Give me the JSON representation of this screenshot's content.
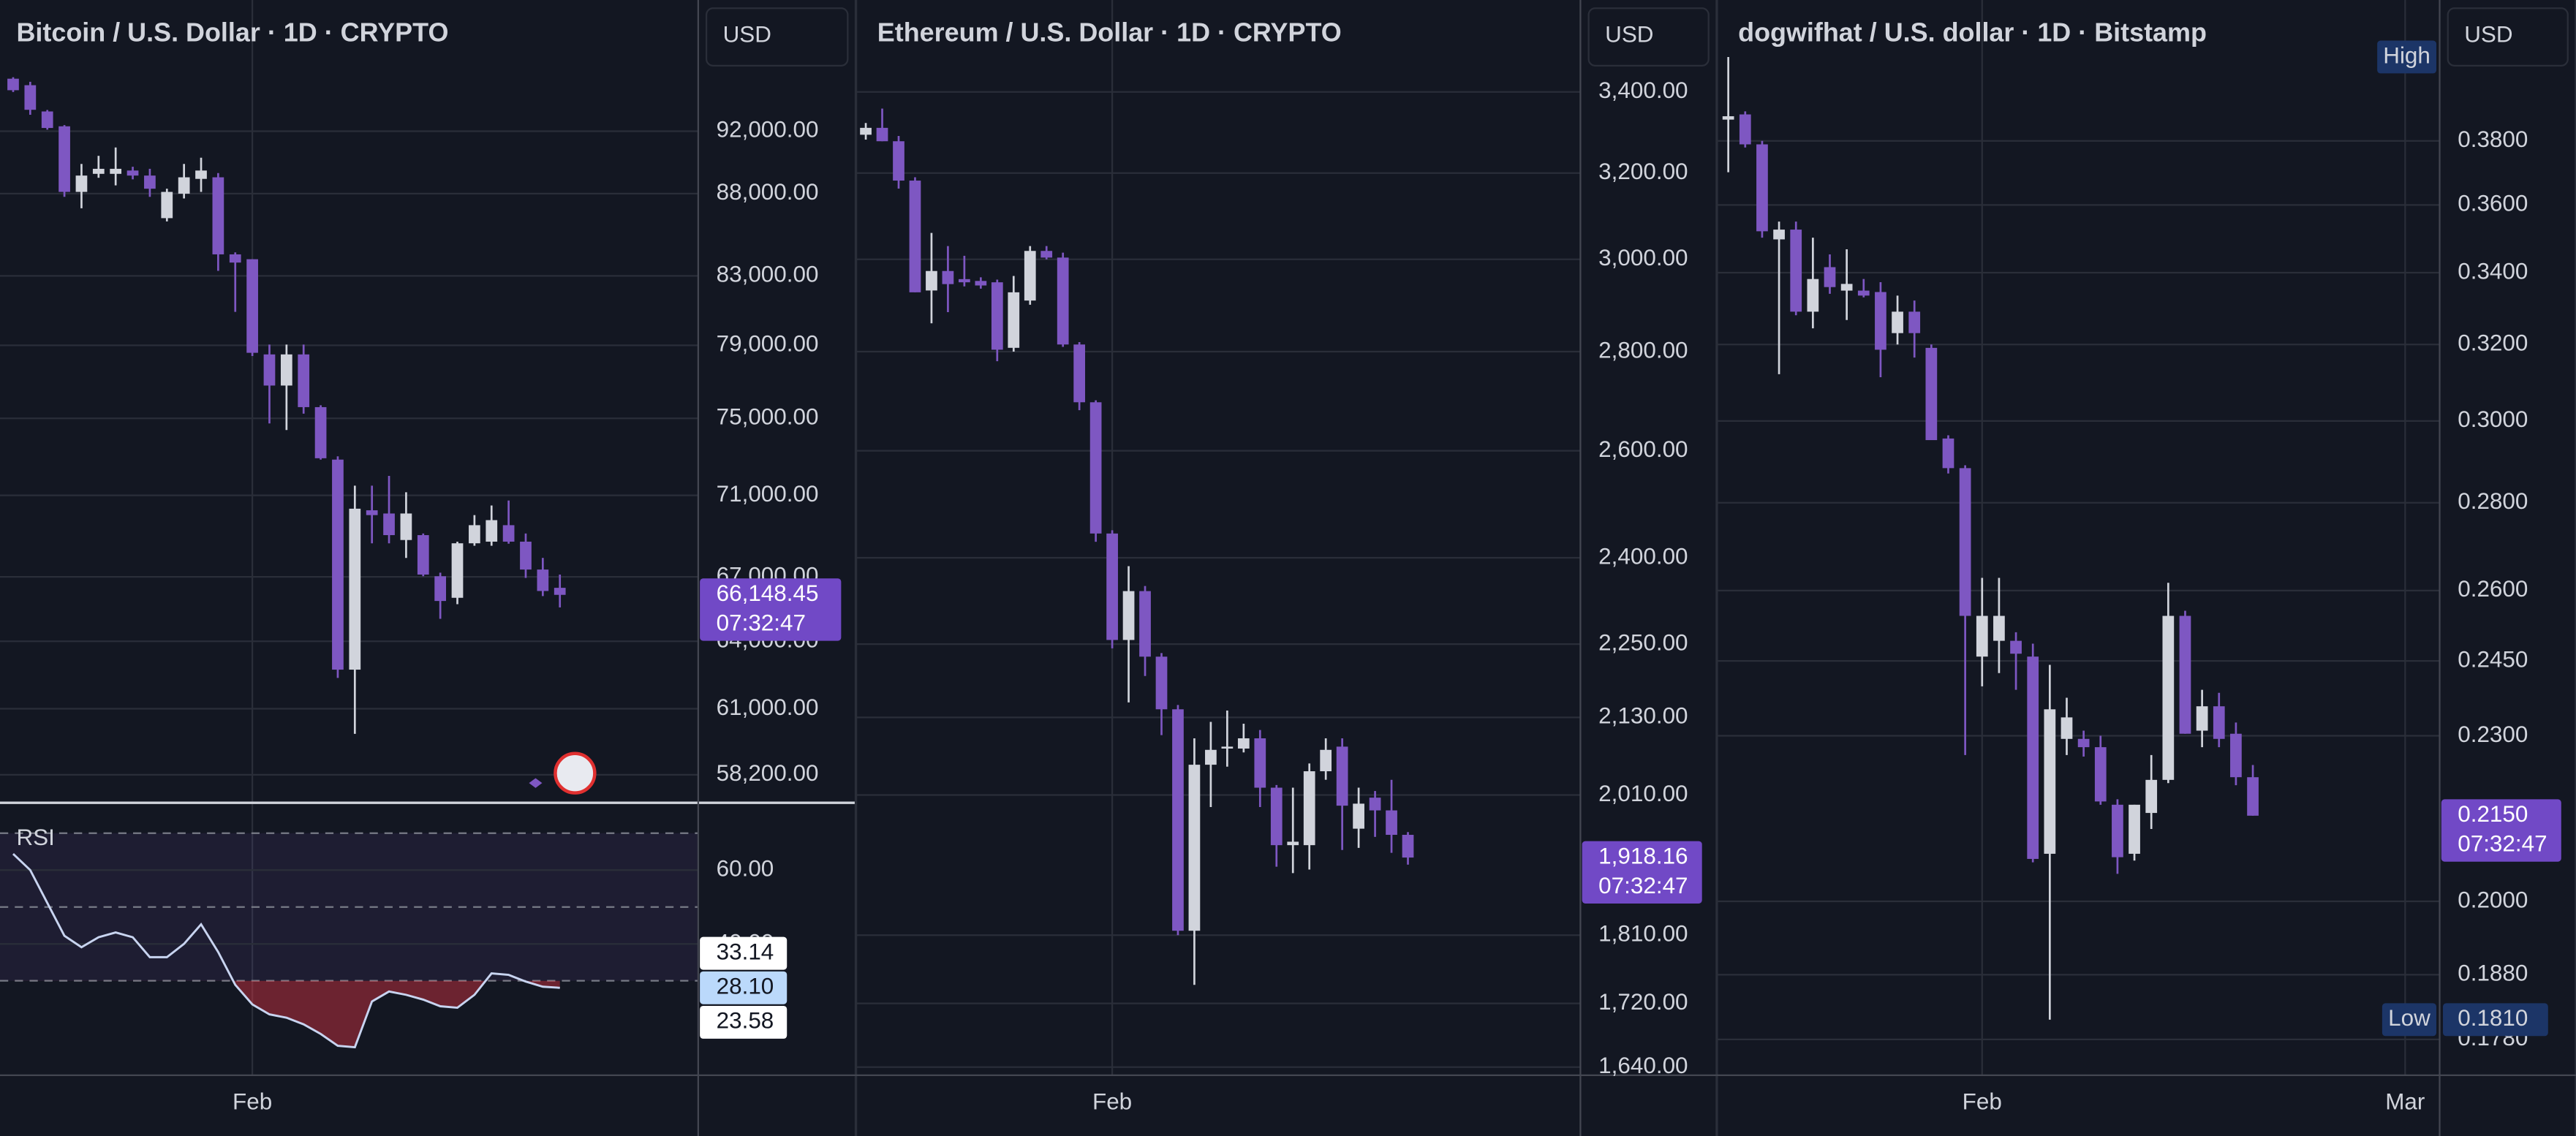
{
  "chart_data": [
    {
      "type": "candlestick",
      "title": "Bitcoin / U.S. Dollar · 1D · CRYPTO",
      "currency": "USD",
      "log_scale": true,
      "grid": true,
      "up_color": "#d1d4dc",
      "down_color": "#7e57c2",
      "ylim": [
        57120,
        101000
      ],
      "yticks": [
        {
          "value": 92000,
          "label": "92,000.00"
        },
        {
          "value": 88000,
          "label": "88,000.00"
        },
        {
          "value": 83000,
          "label": "83,000.00"
        },
        {
          "value": 79000,
          "label": "79,000.00"
        },
        {
          "value": 75000,
          "label": "75,000.00"
        },
        {
          "value": 71000,
          "label": "71,000.00"
        },
        {
          "value": 67000,
          "label": "67,000.00"
        },
        {
          "value": 64000,
          "label": "64,000.00"
        },
        {
          "value": 61000,
          "label": "61,000.00"
        },
        {
          "value": 58200,
          "label": "58,200.00"
        }
      ],
      "categories": [
        null,
        null,
        null,
        null,
        null,
        null,
        null,
        null,
        null,
        null,
        null,
        null,
        null,
        null,
        "Feb",
        null,
        null,
        null,
        null,
        null,
        null,
        null,
        null,
        null,
        null,
        null,
        null,
        null,
        null,
        null,
        null,
        null,
        null
      ],
      "open": [
        95500,
        95060,
        93300,
        92320,
        88110,
        89250,
        89250,
        89460,
        89140,
        86480,
        88000,
        88930,
        89030,
        84280,
        83990,
        78490,
        76770,
        78490,
        75600,
        72830,
        62720,
        70250,
        70090,
        68780,
        69020,
        67030,
        66010,
        68620,
        68700,
        69510,
        68700,
        67350,
        66480
      ],
      "high": [
        95600,
        95290,
        93400,
        92400,
        89880,
        90400,
        90940,
        89700,
        89570,
        88310,
        89880,
        90280,
        89300,
        84400,
        83990,
        79040,
        79040,
        79040,
        75700,
        73000,
        71490,
        71490,
        71990,
        71160,
        69100,
        67200,
        68700,
        70010,
        70490,
        70740,
        69100,
        67910,
        67110
      ],
      "low": [
        94600,
        93080,
        92100,
        87800,
        87090,
        89000,
        88520,
        88900,
        87800,
        86280,
        87700,
        88110,
        83300,
        80900,
        78400,
        74730,
        74380,
        75250,
        72830,
        62350,
        59920,
        68620,
        68620,
        67910,
        67030,
        65030,
        65710,
        68500,
        68500,
        68600,
        66950,
        66090,
        65560
      ],
      "close": [
        94720,
        93410,
        92210,
        88110,
        89140,
        89570,
        89570,
        89140,
        88310,
        88110,
        89030,
        89460,
        84280,
        83790,
        78580,
        76770,
        78490,
        75600,
        72900,
        62720,
        70330,
        70010,
        69020,
        70090,
        67110,
        65860,
        68620,
        69510,
        69760,
        68700,
        67350,
        66330,
        66148.45
      ],
      "last_price": {
        "value": 66148.45,
        "label": "66,148.45"
      },
      "countdown": "07:32:47",
      "rsi": {
        "title": "RSI",
        "color": "#c8d4f0",
        "ylim": [
          4.4,
          77.8
        ],
        "yticks": [
          {
            "value": 60,
            "label": "60.00"
          },
          {
            "value": 40,
            "label": "40.00"
          }
        ],
        "levels": [
          70,
          50,
          30
        ],
        "values": [
          64.4,
          60,
          51.1,
          42.2,
          39.1,
          41.8,
          43.1,
          41.8,
          36.4,
          36.4,
          40,
          45.3,
          37.8,
          28.9,
          23.6,
          20.9,
          20,
          18.2,
          15.6,
          12.4,
          12,
          24.4,
          27.1,
          26.2,
          24.9,
          23.1,
          22.7,
          26.2,
          32,
          31.6,
          29.8,
          28.4,
          28.1
        ],
        "labels": [
          {
            "value": 33.14,
            "label": "33.14"
          },
          {
            "value": 28.1,
            "label": "28.10"
          },
          {
            "value": 23.58,
            "label": "23.58"
          }
        ],
        "label_colors": [
          "#ffffff",
          "#bbd9fb",
          "#ffffff"
        ]
      }
    },
    {
      "type": "candlestick",
      "title": "Ethereum / U.S. Dollar · 1D · CRYPTO",
      "currency": "USD",
      "log_scale": true,
      "grid": true,
      "up_color": "#d1d4dc",
      "down_color": "#7e57c2",
      "ylim": [
        1630,
        3642
      ],
      "yticks": [
        {
          "value": 3400,
          "label": "3,400.00"
        },
        {
          "value": 3200,
          "label": "3,200.00"
        },
        {
          "value": 3000,
          "label": "3,000.00"
        },
        {
          "value": 2800,
          "label": "2,800.00"
        },
        {
          "value": 2600,
          "label": "2,600.00"
        },
        {
          "value": 2400,
          "label": "2,400.00"
        },
        {
          "value": 2250,
          "label": "2,250.00"
        },
        {
          "value": 2130,
          "label": "2,130.00"
        },
        {
          "value": 2010,
          "label": "2,010.00"
        },
        {
          "value": 1810,
          "label": "1,810.00"
        },
        {
          "value": 1720,
          "label": "1,720.00"
        },
        {
          "value": 1640,
          "label": "1,640.00"
        }
      ],
      "categories": [
        null,
        null,
        null,
        null,
        null,
        null,
        null,
        null,
        null,
        null,
        null,
        null,
        null,
        null,
        null,
        "Feb",
        null,
        null,
        null,
        null,
        null,
        null,
        null,
        null,
        null,
        null,
        null,
        null,
        null,
        null,
        null,
        null,
        null,
        null
      ],
      "open": [
        3293,
        3310,
        3277,
        3182,
        2931,
        2974,
        2956,
        2952,
        2949,
        2808,
        2909,
        3019,
        3004,
        2815,
        2696,
        2444,
        2257,
        2341,
        2229,
        2143,
        1816,
        2056,
        2081,
        2081,
        2097,
        2021,
        1936,
        1936,
        2046,
        2084,
        1960,
        2006,
        1987,
        1951
      ],
      "high": [
        3322,
        3358,
        3290,
        3190,
        3060,
        3030,
        3008,
        2960,
        2955,
        2963,
        3030,
        3030,
        3015,
        2820,
        2700,
        2450,
        2385,
        2350,
        2235,
        2150,
        2097,
        2123,
        2141,
        2120,
        2110,
        2025,
        2021,
        2058,
        2097,
        2097,
        2021,
        2016,
        2033,
        1955
      ],
      "low": [
        3281,
        3277,
        3163,
        2927,
        2860,
        2884,
        2940,
        2935,
        2780,
        2800,
        2900,
        3000,
        2810,
        2680,
        2429,
        2243,
        2154,
        2197,
        2102,
        1810,
        1744,
        1992,
        2053,
        2075,
        1992,
        1905,
        1896,
        1901,
        2033,
        1929,
        1932,
        1948,
        1925,
        1908
      ],
      "close": [
        3310,
        3277,
        3182,
        2927,
        2974,
        2945,
        2949,
        2942,
        2804,
        2927,
        3019,
        3004,
        2815,
        2696,
        2444,
        2257,
        2341,
        2229,
        2143,
        1816,
        2056,
        2079,
        2084,
        2097,
        2021,
        1936,
        1941,
        2046,
        2079,
        1994,
        1997,
        1987,
        1951,
        1918.16
      ],
      "last_price": {
        "value": 1918.16,
        "label": "1,918.16"
      },
      "countdown": "07:32:47"
    },
    {
      "type": "candlestick",
      "title": "dogwifhat / U.S. dollar · 1D · Bitstamp",
      "currency": "USD",
      "log_scale": true,
      "grid": true,
      "up_color": "#d1d4dc",
      "down_color": "#7e57c2",
      "ylim": [
        0.1727,
        0.428
      ],
      "yticks": [
        {
          "value": 0.38,
          "label": "0.3800"
        },
        {
          "value": 0.36,
          "label": "0.3600"
        },
        {
          "value": 0.34,
          "label": "0.3400"
        },
        {
          "value": 0.32,
          "label": "0.3200"
        },
        {
          "value": 0.3,
          "label": "0.3000"
        },
        {
          "value": 0.28,
          "label": "0.2800"
        },
        {
          "value": 0.26,
          "label": "0.2600"
        },
        {
          "value": 0.245,
          "label": "0.2450"
        },
        {
          "value": 0.23,
          "label": "0.2300"
        },
        {
          "value": 0.2,
          "label": "0.2000"
        },
        {
          "value": 0.188,
          "label": "0.1880"
        },
        {
          "value": 0.178,
          "label": "0.1780"
        }
      ],
      "categories": [
        null,
        null,
        null,
        null,
        null,
        null,
        null,
        null,
        null,
        null,
        null,
        null,
        null,
        null,
        null,
        "Feb",
        null,
        null,
        null,
        null,
        null,
        null,
        null,
        null,
        null,
        null,
        null,
        null,
        null,
        null,
        null,
        null,
        null,
        null,
        null,
        null,
        null,
        null,
        null,
        null,
        "Mar"
      ],
      "open": [
        0.3869,
        0.3886,
        0.3789,
        0.3497,
        0.3526,
        0.329,
        0.3416,
        0.3349,
        0.3349,
        0.3345,
        0.3231,
        0.329,
        0.3191,
        0.2956,
        0.2883,
        0.2459,
        0.2492,
        0.2492,
        0.2459,
        0.2082,
        0.2294,
        0.2294,
        0.2278,
        0.217,
        0.2082,
        0.2155,
        0.2216,
        0.2545,
        0.231,
        0.2358,
        0.2304,
        0.2221,
        null,
        null,
        null,
        null,
        null,
        null,
        null,
        null,
        null
      ],
      "high": [
        0.4079,
        0.3896,
        0.38,
        0.355,
        0.355,
        0.3502,
        0.3453,
        0.3468,
        0.3382,
        0.3373,
        0.3335,
        0.3321,
        0.32,
        0.2964,
        0.289,
        0.2628,
        0.2628,
        0.251,
        0.2486,
        0.2442,
        0.2375,
        0.231,
        0.23,
        0.218,
        0.217,
        0.2263,
        0.2617,
        0.2556,
        0.2391,
        0.2385,
        0.2326,
        0.2244,
        null,
        null,
        null,
        null,
        null,
        null,
        null,
        null,
        null
      ],
      "low": [
        0.3701,
        0.3779,
        0.3502,
        0.3121,
        0.328,
        0.3244,
        0.334,
        0.3267,
        0.333,
        0.3113,
        0.32,
        0.3165,
        0.2952,
        0.287,
        0.2263,
        0.2398,
        0.2425,
        0.2391,
        0.2067,
        0.181,
        0.2263,
        0.226,
        0.217,
        0.2047,
        0.207,
        0.2126,
        0.221,
        0.2304,
        0.2278,
        0.2278,
        0.2206,
        0.215,
        null,
        null,
        null,
        null,
        null,
        null,
        null,
        null,
        null
      ],
      "close": [
        0.388,
        0.3789,
        0.3521,
        0.3526,
        0.329,
        0.3382,
        0.3359,
        0.3368,
        0.3335,
        0.3186,
        0.329,
        0.3231,
        0.2952,
        0.2883,
        0.2545,
        0.2545,
        0.2545,
        0.2465,
        0.2073,
        0.2352,
        0.2336,
        0.2278,
        0.2176,
        0.2076,
        0.217,
        0.2216,
        0.2545,
        0.2304,
        0.2358,
        0.2294,
        0.2221,
        0.215,
        null,
        null,
        null,
        null,
        null,
        null,
        null,
        null,
        null
      ],
      "last_price": {
        "value": 0.215,
        "label": "0.2150"
      },
      "countdown": "07:32:47",
      "high_label": "High",
      "low_label": "Low",
      "low_value": {
        "value": 0.181,
        "label": "0.1810"
      }
    }
  ]
}
